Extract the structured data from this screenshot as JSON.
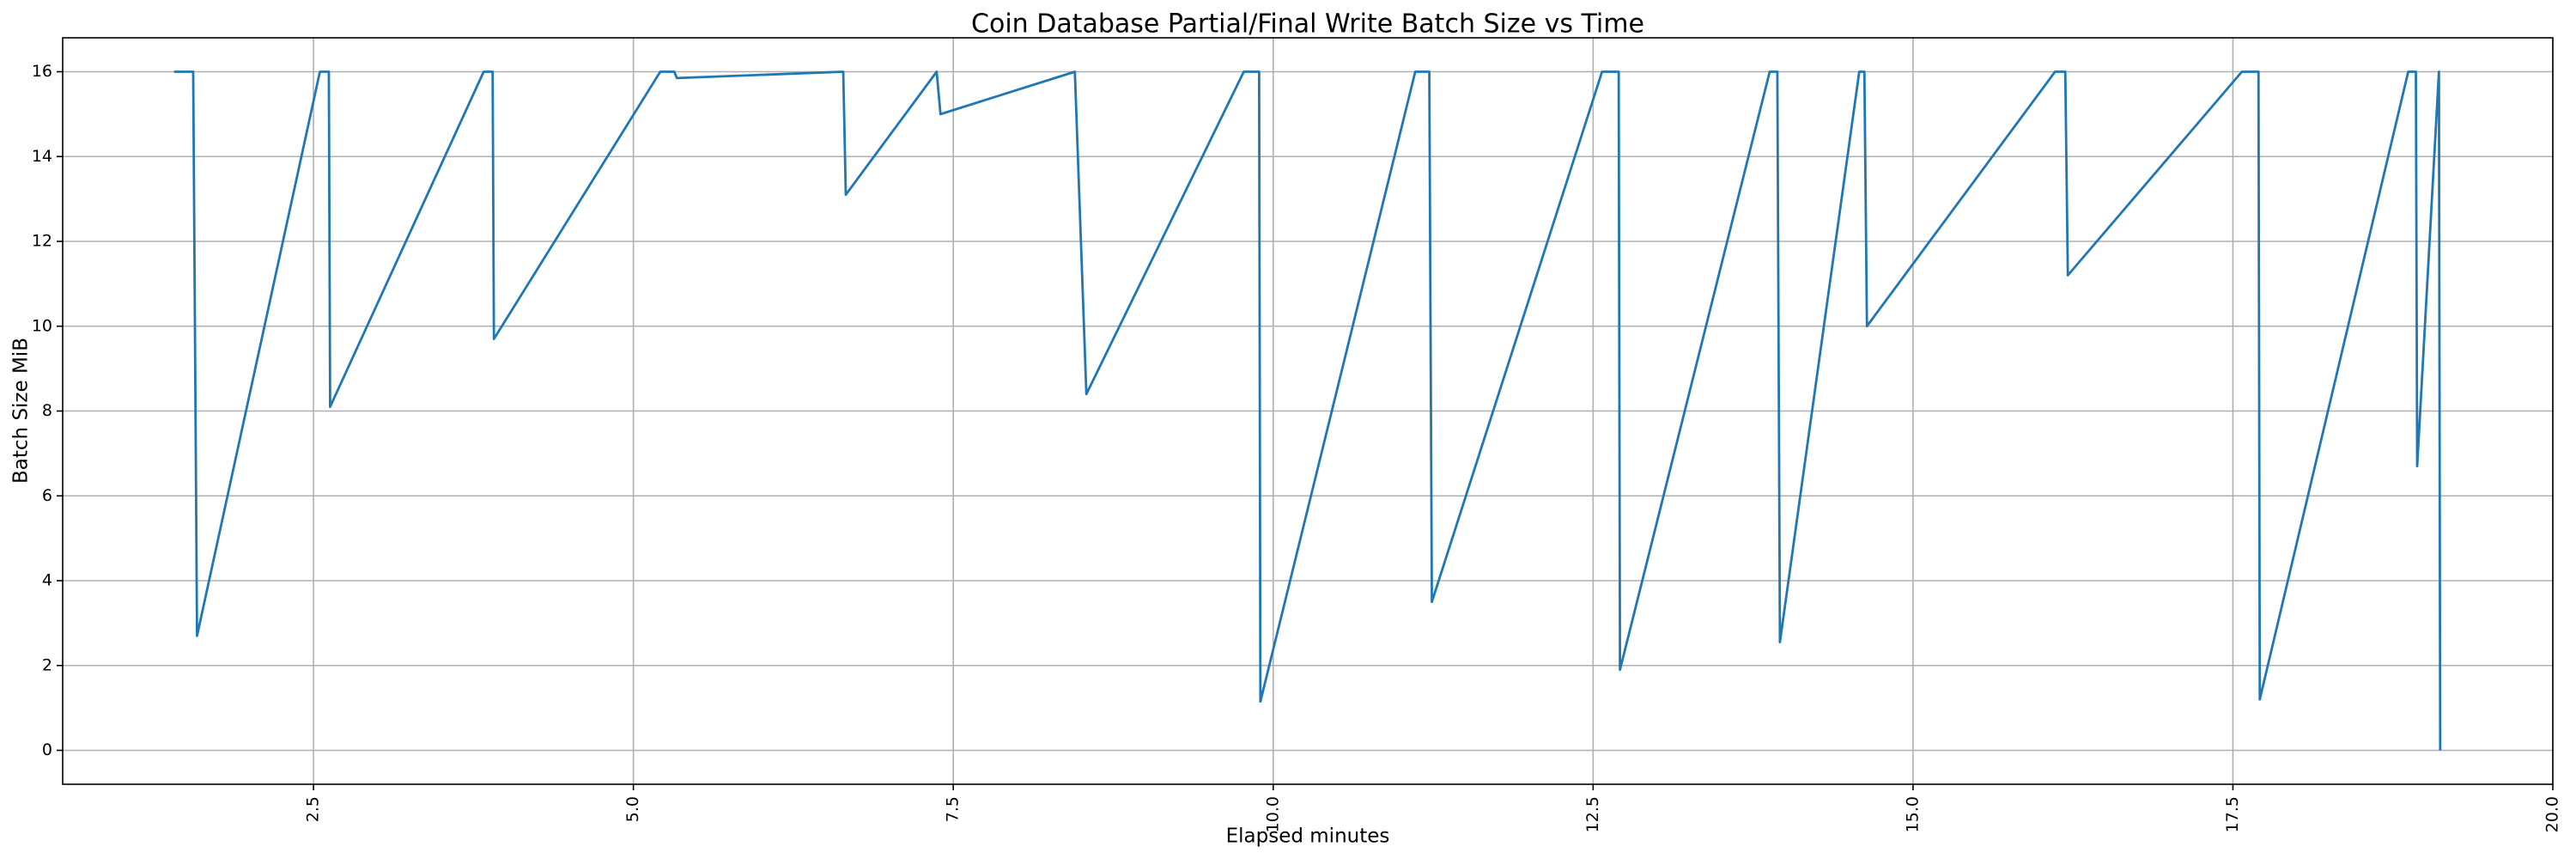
{
  "chart_data": {
    "type": "line",
    "title": "Coin Database Partial/Final Write Batch Size vs Time",
    "x_label": "Elapsed minutes",
    "y_label": "Batch Size MiB",
    "color": "#1f77b4",
    "grid": true,
    "x": [
      1.41,
      1.56,
      1.59,
      2.55,
      2.62,
      2.63,
      3.83,
      3.9,
      3.91,
      5.21,
      5.32,
      5.34,
      6.64,
      6.66,
      7.37,
      7.4,
      8.45,
      8.54,
      9.77,
      9.89,
      9.9,
      11.11,
      11.22,
      11.24,
      12.57,
      12.7,
      12.71,
      13.88,
      13.94,
      13.96,
      14.58,
      14.62,
      14.64,
      16.11,
      16.19,
      16.21,
      17.57,
      17.7,
      17.71,
      18.87,
      18.93,
      18.94,
      19.11,
      19.12
    ],
    "values": [
      16,
      16,
      2.7,
      16,
      16,
      8.1,
      16,
      16,
      9.7,
      16,
      16,
      15.85,
      16,
      13.1,
      16,
      15.0,
      16,
      8.4,
      16,
      16,
      1.15,
      16,
      16,
      3.5,
      16,
      16,
      1.9,
      16,
      16,
      2.55,
      16,
      16,
      10.0,
      16,
      16,
      11.2,
      16,
      16,
      1.2,
      16,
      16,
      6.7,
      16,
      0
    ],
    "xlim": [
      0.54,
      20.0
    ],
    "ylim": [
      -0.8,
      16.8
    ],
    "xticks": [
      {
        "value": 2.5,
        "label": "2.5"
      },
      {
        "value": 5,
        "label": "5.0"
      },
      {
        "value": 7.5,
        "label": "7.5"
      },
      {
        "value": 10,
        "label": "10.0"
      },
      {
        "value": 12.5,
        "label": "12.5"
      },
      {
        "value": 15,
        "label": "15.0"
      },
      {
        "value": 17.5,
        "label": "17.5"
      },
      {
        "value": 20,
        "label": "20.0"
      }
    ],
    "yticks": [
      0,
      2,
      4,
      6,
      8,
      10,
      12,
      14,
      16
    ]
  }
}
